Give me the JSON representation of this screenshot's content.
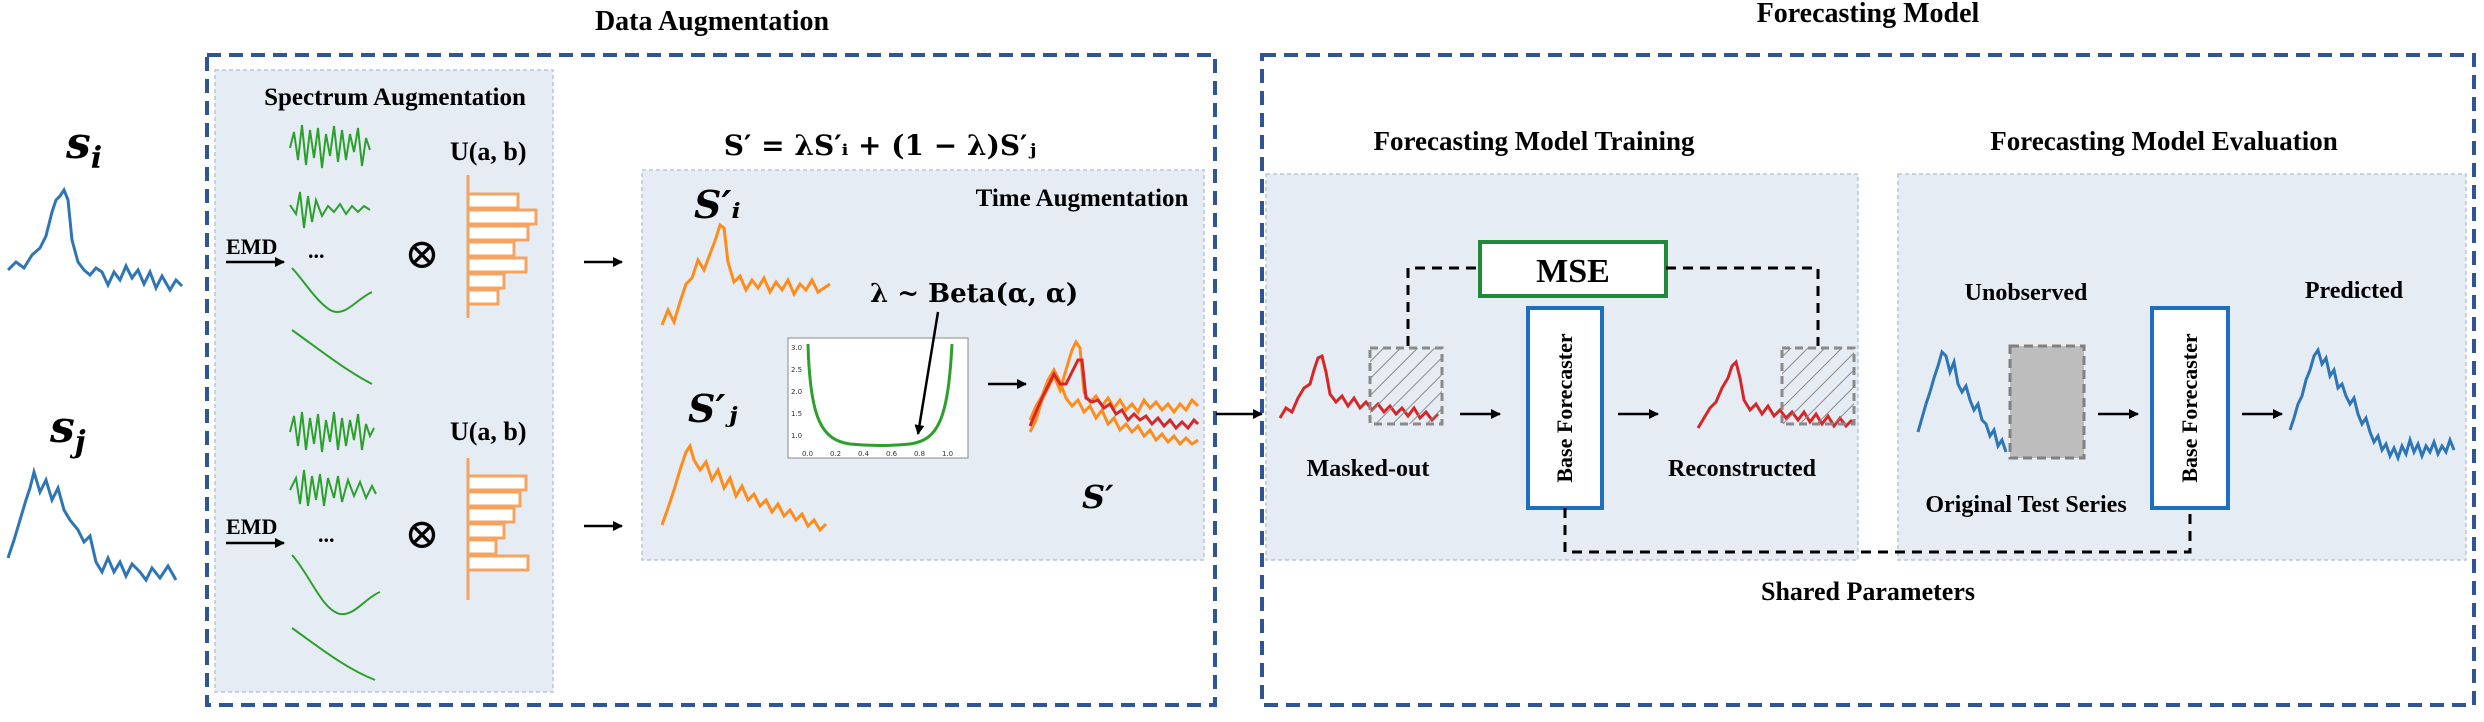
{
  "sections": {
    "data_augmentation": "Data Augmentation",
    "forecasting_model": "Forecasting Model"
  },
  "inputs": {
    "si": "s",
    "si_sub": "i",
    "sj": "s",
    "sj_sub": "j"
  },
  "spectrum": {
    "title": "Spectrum Augmentation",
    "emd": "EMD",
    "dots": "...",
    "otimes": "⊗",
    "uniform": "U(a, b)"
  },
  "time_aug": {
    "title": "Time Augmentation",
    "formula": "S′ = λS′ᵢ + (1 − λ)S′ⱼ",
    "lambda": "λ ~ Beta(α, α)",
    "si_prime": "S′ᵢ",
    "sj_prime": "S′ⱼ",
    "s_prime": "S′",
    "beta_axis_y": [
      "3.0",
      "2.5",
      "2.0",
      "1.5",
      "1.0"
    ],
    "beta_axis_x": [
      "0.0",
      "0.2",
      "0.4",
      "0.6",
      "0.8",
      "1.0"
    ]
  },
  "training": {
    "title": "Forecasting Model Training",
    "mse": "MSE",
    "base": "Base Forecaster",
    "masked": "Masked-out",
    "reconstructed": "Reconstructed"
  },
  "evaluation": {
    "title": "Forecasting Model Evaluation",
    "unobserved": "Unobserved",
    "predicted": "Predicted",
    "base": "Base Forecaster",
    "original": "Original Test Series"
  },
  "shared": "Shared Parameters",
  "colors": {
    "blue_series": "#2e75b6",
    "orange_series": "#ff8c1a",
    "red_series": "#d62728",
    "green_imf": "#2ca02c",
    "mse_border": "#1e8a3a",
    "forecaster_border": "#1f6fc1",
    "panel_fill": "#e6ecf3",
    "dashed_border": "#2f5597"
  }
}
